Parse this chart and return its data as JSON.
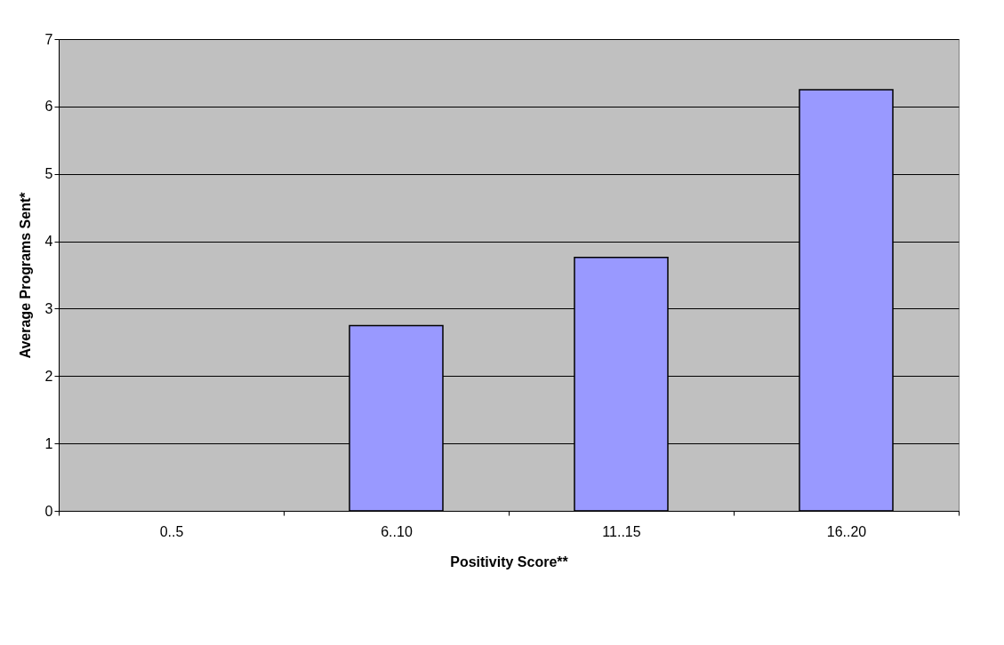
{
  "chart_data": {
    "type": "bar",
    "xlabel": "Positivity Score**",
    "ylabel": "Average Programs Sent*",
    "categories": [
      "0..5",
      "6..10",
      "11..15",
      "16..20"
    ],
    "values": [
      null,
      2.75,
      3.76,
      6.25
    ],
    "color": "#9999ff",
    "ylim": [
      0,
      7
    ],
    "yticks": [
      0,
      1,
      2,
      3,
      4,
      5,
      6,
      7
    ],
    "grid": "y"
  }
}
